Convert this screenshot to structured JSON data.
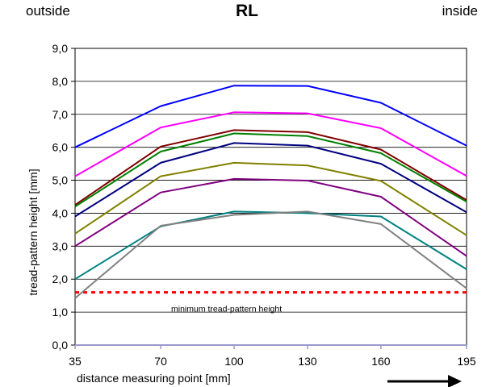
{
  "header": {
    "left": "outside",
    "title": "RL",
    "right": "inside"
  },
  "chart_data": {
    "type": "line",
    "title": "RL",
    "xlabel": "distance measuring point [mm]",
    "ylabel": "tread-pattern height [mm]",
    "x": [
      35,
      70,
      100,
      130,
      160,
      195
    ],
    "x_tick_labels": [
      "35",
      "70",
      "100",
      "130",
      "160",
      "195"
    ],
    "ylim": [
      0,
      9
    ],
    "y_tick_labels": [
      "0,0",
      "1,0",
      "2,0",
      "3,0",
      "4,0",
      "5,0",
      "6,0",
      "7,0",
      "8,0",
      "9,0"
    ],
    "grid": true,
    "series": [
      {
        "color": "#0000ff",
        "values": [
          6.0,
          7.25,
          7.87,
          7.86,
          7.35,
          6.05
        ]
      },
      {
        "color": "#ff00ff",
        "values": [
          5.12,
          6.6,
          7.06,
          7.03,
          6.58,
          5.13
        ]
      },
      {
        "color": "#800000",
        "values": [
          4.25,
          6.02,
          6.52,
          6.46,
          5.93,
          4.4
        ]
      },
      {
        "color": "#008000",
        "values": [
          4.2,
          5.87,
          6.42,
          6.34,
          5.82,
          4.35
        ]
      },
      {
        "color": "#000080",
        "values": [
          3.9,
          5.53,
          6.13,
          6.05,
          5.5,
          4.03
        ]
      },
      {
        "color": "#808000",
        "values": [
          3.38,
          5.12,
          5.53,
          5.45,
          4.98,
          3.33
        ]
      },
      {
        "color": "#800080",
        "values": [
          3.0,
          4.63,
          5.04,
          4.99,
          4.5,
          2.7
        ]
      },
      {
        "color": "#008080",
        "values": [
          2.0,
          3.6,
          4.05,
          4.0,
          3.9,
          2.3
        ]
      },
      {
        "color": "#808080",
        "values": [
          1.42,
          3.62,
          3.95,
          4.05,
          3.67,
          1.72
        ]
      }
    ],
    "reference_line": {
      "value": 1.6,
      "color": "#ff0000",
      "label": "minimum tread-pattern height"
    },
    "arrow_direction": "right"
  }
}
